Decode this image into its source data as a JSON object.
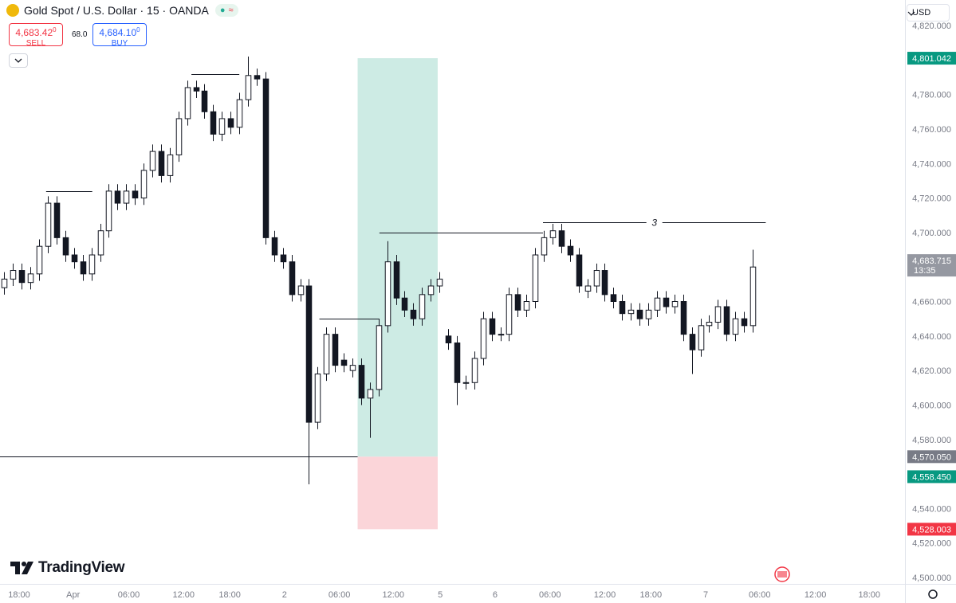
{
  "header": {
    "symbol": "Gold Spot / U.S. Dollar · 15 · OANDA",
    "sell": {
      "price": "4,683.42",
      "fraction": "0",
      "label": "SELL"
    },
    "buy": {
      "price": "4,684.10",
      "fraction": "0",
      "label": "BUY"
    },
    "spread": "68.0",
    "currency": "USD"
  },
  "footer": {
    "brand": "TradingView"
  },
  "chart_data": {
    "type": "candlestick",
    "open": [
      4668,
      4673,
      4678,
      4671,
      4676,
      4692,
      4717,
      4697,
      4687,
      4683,
      4676,
      4687,
      4701,
      4724,
      4717,
      4724,
      4720,
      4736,
      4747,
      4733,
      4745,
      4766,
      4784,
      4782,
      4770,
      4757,
      4766,
      4761,
      4777,
      4791,
      4789,
      4697,
      4687,
      4683,
      4664,
      4669,
      4590,
      4618,
      4641,
      4626,
      4620,
      4623,
      4604,
      4609,
      4646,
      4683,
      4662,
      4655,
      4650,
      4664,
      4669,
      4640,
      4636,
      4613,
      4613,
      4627,
      4650,
      4641,
      4641,
      4664,
      4655,
      4660,
      4687,
      4697,
      4701,
      4692,
      4687,
      4666,
      4669,
      4678,
      4664,
      4660,
      4653,
      4655,
      4650,
      4655,
      4662,
      4657,
      4660,
      4641,
      4632,
      4646,
      4648,
      4657,
      4641,
      4650,
      4646
    ],
    "high": [
      4677,
      4682,
      4682,
      4680,
      4696,
      4721,
      4721,
      4701,
      4691,
      4687,
      4691,
      4705,
      4728,
      4728,
      4728,
      4728,
      4740,
      4751,
      4751,
      4749,
      4770,
      4788,
      4788,
      4786,
      4774,
      4770,
      4770,
      4781,
      4802,
      4795,
      4793,
      4701,
      4691,
      4687,
      4673,
      4673,
      4622,
      4645,
      4645,
      4630,
      4627,
      4627,
      4613,
      4650,
      4695,
      4687,
      4666,
      4659,
      4668,
      4673,
      4677,
      4644,
      4640,
      4617,
      4631,
      4654,
      4654,
      4645,
      4668,
      4668,
      4664,
      4691,
      4701,
      4705,
      4705,
      4696,
      4691,
      4673,
      4682,
      4682,
      4668,
      4664,
      4659,
      4659,
      4659,
      4666,
      4666,
      4664,
      4664,
      4645,
      4650,
      4652,
      4661,
      4661,
      4654,
      4654,
      4690
    ],
    "low": [
      4664,
      4669,
      4667,
      4667,
      4672,
      4688,
      4693,
      4683,
      4679,
      4672,
      4672,
      4683,
      4697,
      4713,
      4713,
      4716,
      4716,
      4732,
      4729,
      4729,
      4741,
      4762,
      4778,
      4766,
      4753,
      4753,
      4757,
      4757,
      4773,
      4785,
      4693,
      4683,
      4679,
      4660,
      4660,
      4554,
      4586,
      4614,
      4619,
      4619,
      4616,
      4600,
      4581,
      4605,
      4642,
      4658,
      4651,
      4646,
      4646,
      4660,
      4665,
      4632,
      4600,
      4609,
      4609,
      4623,
      4637,
      4637,
      4637,
      4651,
      4651,
      4656,
      4683,
      4693,
      4688,
      4683,
      4665,
      4662,
      4665,
      4660,
      4656,
      4649,
      4649,
      4646,
      4646,
      4651,
      4653,
      4653,
      4637,
      4618,
      4628,
      4642,
      4644,
      4637,
      4637,
      4642,
      4642
    ],
    "close": [
      4673,
      4678,
      4671,
      4676,
      4692,
      4717,
      4697,
      4687,
      4683,
      4676,
      4687,
      4701,
      4724,
      4717,
      4724,
      4720,
      4736,
      4747,
      4733,
      4745,
      4766,
      4784,
      4782,
      4770,
      4757,
      4766,
      4761,
      4777,
      4791,
      4789,
      4697,
      4687,
      4683,
      4664,
      4669,
      4590,
      4618,
      4641,
      4623,
      4623,
      4623,
      4604,
      4609,
      4646,
      4683,
      4662,
      4655,
      4650,
      4664,
      4669,
      4673,
      4636,
      4613,
      4613,
      4627,
      4650,
      4641,
      4641,
      4664,
      4655,
      4660,
      4687,
      4697,
      4701,
      4692,
      4687,
      4669,
      4669,
      4678,
      4664,
      4660,
      4653,
      4655,
      4650,
      4655,
      4662,
      4657,
      4660,
      4641,
      4632,
      4646,
      4648,
      4657,
      4641,
      4650,
      4646,
      4680
    ],
    "up_color": "#ffffff",
    "down_color": "#131722",
    "wick_color": "#131722",
    "xlim": [
      0,
      104
    ],
    "xticks": [
      {
        "value": 2.2,
        "label": "18:00"
      },
      {
        "value": 8.4,
        "label": "Apr"
      },
      {
        "value": 14.8,
        "label": "06:00"
      },
      {
        "value": 21.1,
        "label": "12:00"
      },
      {
        "value": 26.4,
        "label": "18:00"
      },
      {
        "value": 32.7,
        "label": "2"
      },
      {
        "value": 39,
        "label": "06:00"
      },
      {
        "value": 45.2,
        "label": "12:00"
      },
      {
        "value": 50.6,
        "label": "5"
      },
      {
        "value": 56.9,
        "label": "6"
      },
      {
        "value": 63.2,
        "label": "06:00"
      },
      {
        "value": 69.5,
        "label": "12:00"
      },
      {
        "value": 74.8,
        "label": "18:00"
      },
      {
        "value": 81.1,
        "label": "7"
      },
      {
        "value": 87.3,
        "label": "06:00"
      },
      {
        "value": 93.7,
        "label": "12:00"
      },
      {
        "value": 99.9,
        "label": "18:00"
      }
    ],
    "ylim": [
      4500,
      4820
    ],
    "yticks": [
      {
        "value": 4500,
        "label": "4,500.000"
      },
      {
        "value": 4520,
        "label": "4,520.000"
      },
      {
        "value": 4540,
        "label": "4,540.000"
      },
      {
        "value": 4560,
        "label": "4,560.000"
      },
      {
        "value": 4580,
        "label": "4,580.000"
      },
      {
        "value": 4600,
        "label": "4,600.000"
      },
      {
        "value": 4620,
        "label": "4,620.000"
      },
      {
        "value": 4640,
        "label": "4,640.000"
      },
      {
        "value": 4660,
        "label": "4,660.000"
      },
      {
        "value": 4680,
        "label": "4,680.000"
      },
      {
        "value": 4700,
        "label": "4,700.000"
      },
      {
        "value": 4720,
        "label": "4,720.000"
      },
      {
        "value": 4740,
        "label": "4,740.000"
      },
      {
        "value": 4760,
        "label": "4,760.000"
      },
      {
        "value": 4780,
        "label": "4,780.000"
      },
      {
        "value": 4800,
        "label": "4,800.000"
      },
      {
        "value": 4820,
        "label": "4,820.000"
      }
    ],
    "grid": false,
    "price_labels": [
      {
        "value": 4801.042,
        "label": "4,801.042",
        "color": "#089981"
      },
      {
        "value": 4683.715,
        "label": "4,683.715",
        "sub": "13:35",
        "color": "#9598a1"
      },
      {
        "value": 4570.05,
        "label": "4,570.050",
        "color": "#787b86"
      },
      {
        "value": 4558.45,
        "label": "4,558.450",
        "color": "#089981"
      },
      {
        "value": 4528.003,
        "label": "4,528.003",
        "color": "#f23645"
      }
    ],
    "position": {
      "x": [
        41.1,
        50.3
      ],
      "target": 4801.042,
      "entry": 4570.05,
      "stop": 4528.003,
      "profit_color": "#cdebe4",
      "loss_color": "#fbd5d9"
    },
    "levels": [
      {
        "price": 4724,
        "x": [
          5.3,
          10.6
        ]
      },
      {
        "price": 4792,
        "x": [
          22,
          27.5
        ]
      },
      {
        "price": 4650,
        "x": [
          36.7,
          43.6
        ]
      },
      {
        "price": 4700,
        "x": [
          43.6,
          62.4
        ]
      },
      {
        "price": 4706,
        "x": [
          62.4,
          88
        ],
        "label": "3",
        "label_x": 75.2
      },
      {
        "price": 4570.05,
        "x": [
          0,
          41.1
        ]
      }
    ]
  }
}
